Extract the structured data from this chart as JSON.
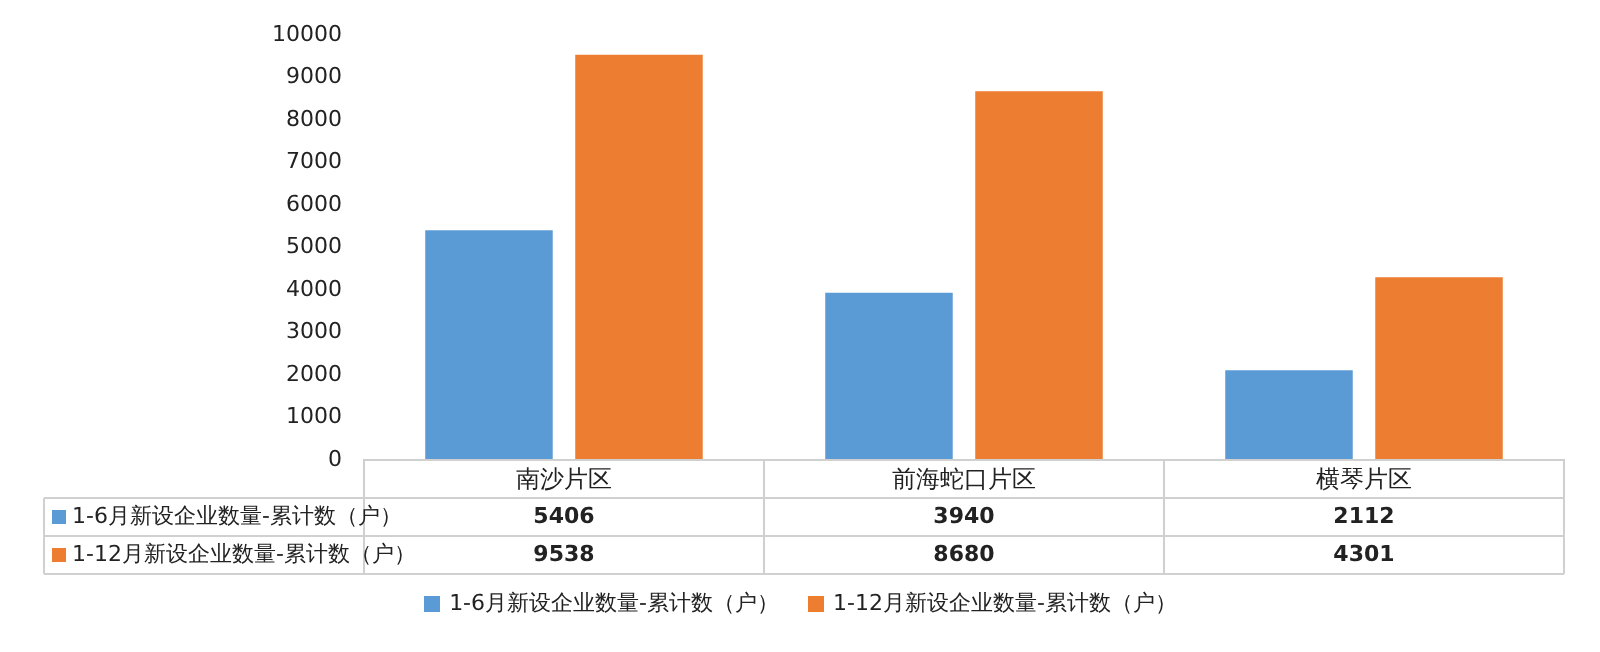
{
  "chart_data": {
    "type": "bar",
    "categories": [
      "南沙片区",
      "前海蛇口片区",
      "横琴片区"
    ],
    "series": [
      {
        "name": "1-6月新设企业数量-累计数（户）",
        "color": "#5b9bd5",
        "values": [
          5406,
          3940,
          2112
        ]
      },
      {
        "name": "1-12月新设企业数量-累计数（户）",
        "color": "#ed7d31",
        "values": [
          9538,
          8680,
          4301
        ]
      }
    ],
    "ylim": [
      0,
      10000
    ],
    "yticks": [
      0,
      1000,
      2000,
      3000,
      4000,
      5000,
      6000,
      7000,
      8000,
      9000,
      10000
    ],
    "grid": false,
    "legend": "bottom",
    "data_labels": true
  }
}
